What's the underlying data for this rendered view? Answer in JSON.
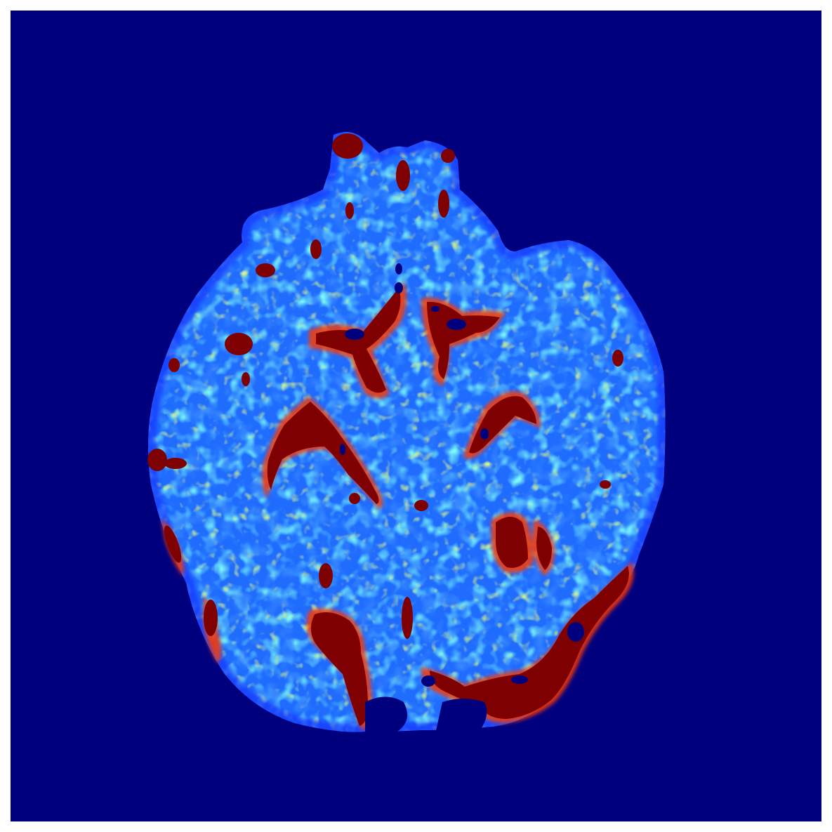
{
  "image": {
    "kind": "perfusion-ct-colormap",
    "colormap": "jet",
    "colors": {
      "border": "#ffffff",
      "background": "#00007f",
      "tissue_low": "#0a3cff",
      "tissue_mid_blue": "#2f8cff",
      "tissue_cyan": "#35e6f0",
      "tissue_green": "#9cf25e",
      "tissue_yellow": "#f7f21e",
      "tissue_orange": "#ff8a00",
      "tissue_red": "#e11a00",
      "tissue_max": "#7f0000"
    }
  }
}
